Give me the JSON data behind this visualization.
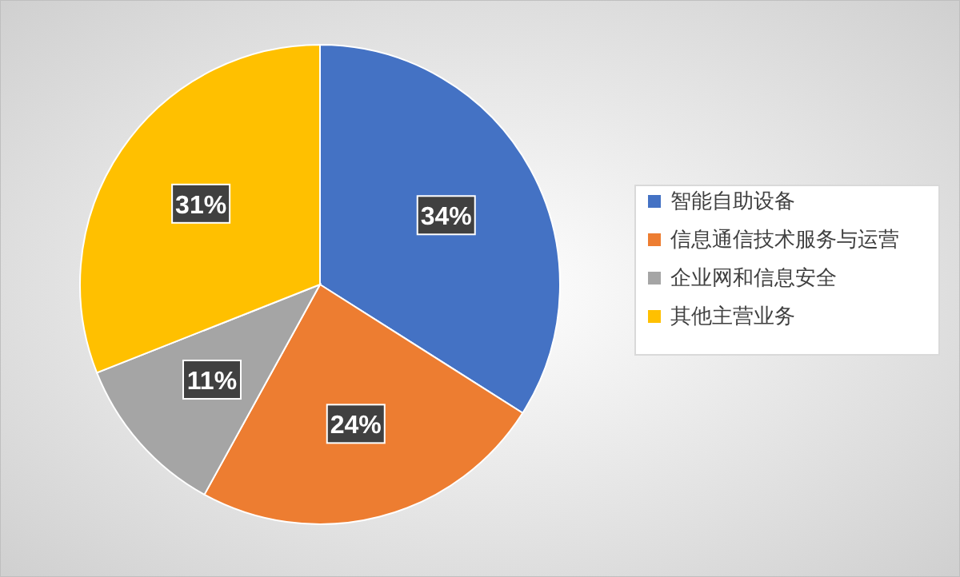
{
  "chart_data": {
    "type": "pie",
    "categories": [
      "智能自助设备",
      "信息通信技术服务与运营",
      "企业网和信息安全",
      "其他主营业务"
    ],
    "values": [
      34,
      24,
      11,
      31
    ],
    "value_labels": [
      "34%",
      "24%",
      "11%",
      "31%"
    ],
    "colors": [
      "#4472c4",
      "#ed7d31",
      "#a5a5a5",
      "#ffc000"
    ],
    "legend": "right"
  }
}
